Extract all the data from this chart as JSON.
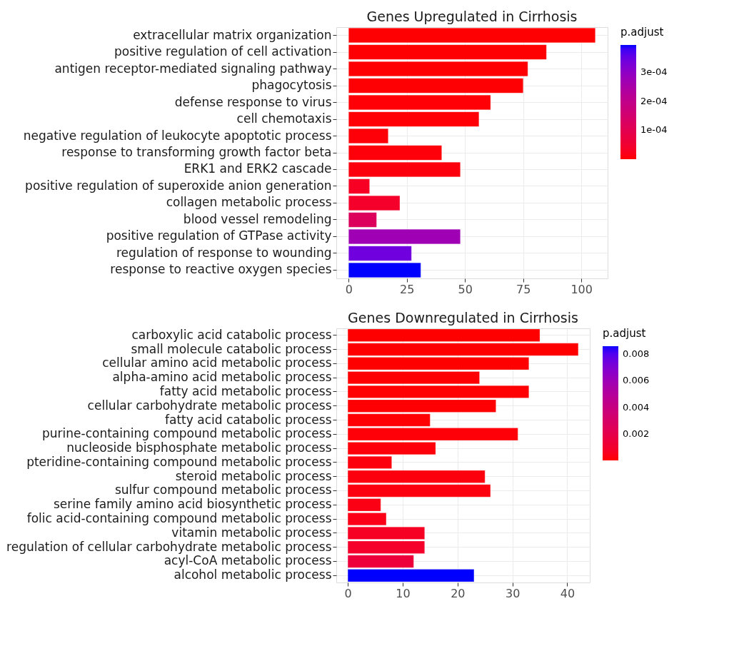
{
  "chart_data": [
    {
      "type": "bar",
      "orientation": "horizontal",
      "title": "Genes Upregulated in Cirrhosis",
      "categories": [
        "extracellular matrix organization",
        "positive regulation of cell activation",
        "antigen receptor-mediated signaling pathway",
        "phagocytosis",
        "defense response to virus",
        "cell chemotaxis",
        "negative regulation of leukocyte apoptotic process",
        "response to transforming growth factor beta",
        "ERK1 and ERK2 cascade",
        "positive regulation of superoxide anion generation",
        "collagen metabolic process",
        "blood vessel remodeling",
        "positive regulation of GTPase activity",
        "regulation of response to wounding",
        "response to reactive oxygen species"
      ],
      "values": [
        106,
        85,
        77,
        75,
        61,
        56,
        17,
        40,
        48,
        9,
        22,
        12,
        48,
        27,
        31
      ],
      "cvalues": [
        1e-06,
        1e-06,
        1e-06,
        2e-06,
        3e-06,
        4e-06,
        5e-06,
        6e-06,
        8e-06,
        3e-05,
        4e-05,
        0.00012,
        0.00027,
        0.00034,
        0.000395
      ],
      "clim": [
        0,
        0.000395
      ],
      "cticks": [
        {
          "value": 0.0001,
          "label": "1e-04"
        },
        {
          "value": 0.0002,
          "label": "2e-04"
        },
        {
          "value": 0.0003,
          "label": "3e-04"
        }
      ],
      "clabel": "p.adjust",
      "xlim": [
        -5.3,
        111.3
      ],
      "xticks": [
        0,
        25,
        50,
        75,
        100
      ],
      "grid": true
    },
    {
      "type": "bar",
      "orientation": "horizontal",
      "title": "Genes Downregulated in Cirrhosis",
      "categories": [
        "carboxylic acid catabolic process",
        "small molecule catabolic process",
        "cellular amino acid metabolic process",
        "alpha-amino acid metabolic process",
        "fatty acid metabolic process",
        "cellular carbohydrate metabolic process",
        "fatty acid catabolic process",
        "purine-containing compound metabolic process",
        "nucleoside bisphosphate metabolic process",
        "pteridine-containing compound metabolic process",
        "steroid metabolic process",
        "sulfur compound metabolic process",
        "serine family amino acid biosynthetic process",
        "folic acid-containing compound metabolic process",
        "vitamin metabolic process",
        "regulation of cellular carbohydrate metabolic process",
        "acyl-CoA metabolic process",
        "alcohol metabolic process"
      ],
      "values": [
        35,
        42,
        33,
        24,
        33,
        27,
        15,
        31,
        16,
        8,
        25,
        26,
        6,
        7,
        14,
        14,
        12,
        23
      ],
      "cvalues": [
        1e-05,
        1e-05,
        2e-05,
        3e-05,
        4e-05,
        5e-05,
        6e-05,
        0.0001,
        0.00012,
        0.0002,
        0.0002,
        0.00022,
        0.0003,
        0.00035,
        0.0007,
        0.0009,
        0.0014,
        0.0086
      ],
      "clim": [
        0,
        0.0086
      ],
      "cticks": [
        0.002,
        0.004,
        0.006,
        0.008
      ],
      "clabel": "p.adjust",
      "xlim": [
        -2.1,
        44.1
      ],
      "xticks": [
        0,
        10,
        20,
        30,
        40
      ],
      "grid": true
    }
  ]
}
